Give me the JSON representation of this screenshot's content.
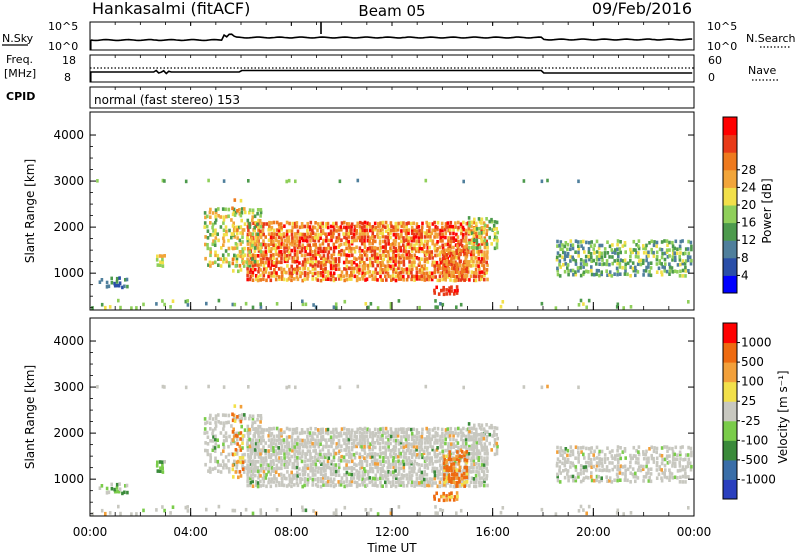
{
  "header": {
    "station": "Hankasalmi (fitACF)",
    "beam": "Beam 05",
    "date": "09/Feb/2016"
  },
  "noise_panel": {
    "left_label": "N.Sky",
    "right_label": "N.Search",
    "y_top_left": "10^5",
    "y_bottom_left": "10^0",
    "y_top_right": "10^5",
    "y_bottom_right": "10^0"
  },
  "freq_panel": {
    "left_label_1": "Freq.",
    "left_label_2": "[MHz]",
    "right_label": "Nave",
    "y_left_ticks": [
      "18",
      "8"
    ],
    "y_right_ticks": [
      "60",
      "0"
    ]
  },
  "cpid_panel": {
    "label": "CPID",
    "text": "normal (fast stereo) 153"
  },
  "chart_data": [
    {
      "type": "heatmap",
      "parameter": "power",
      "ylabel": "Slant Range [km]",
      "ylim": [
        200,
        4500
      ],
      "yticks": [
        "1000",
        "2000",
        "3000",
        "4000"
      ],
      "colorbar": {
        "label": "Power [dB]",
        "ticks": [
          "4",
          "8",
          "12",
          "16",
          "20",
          "24",
          "28"
        ],
        "colors": [
          "#0000ff",
          "#2a4ea8",
          "#4f7f9c",
          "#4c9a4c",
          "#8fcf5a",
          "#f2e04a",
          "#f2a53a",
          "#ee7a1e",
          "#e83a18",
          "#ff0000"
        ]
      },
      "xlim_hours": [
        0,
        24
      ]
    },
    {
      "type": "heatmap",
      "parameter": "velocity",
      "ylabel": "Slant Range [km]",
      "ylim": [
        200,
        4500
      ],
      "yticks": [
        "1000",
        "2000",
        "3000",
        "4000"
      ],
      "colorbar": {
        "label": "Velocity [m s⁻¹]",
        "ticks": [
          "1000",
          "500",
          "100",
          "25",
          "-25",
          "-100",
          "-500",
          "-1000"
        ],
        "colors": [
          "#2a3fbe",
          "#3a6ea8",
          "#3a8a3a",
          "#7acc4a",
          "#c8c8c0",
          "#f2e04a",
          "#f2a03a",
          "#ee6a10",
          "#ff0000"
        ]
      },
      "xlim_hours": [
        0,
        24
      ]
    }
  ],
  "xaxis": {
    "ticks": [
      "00:00",
      "04:00",
      "08:00",
      "12:00",
      "16:00",
      "20:00",
      "00:00"
    ],
    "label": "Time UT"
  }
}
